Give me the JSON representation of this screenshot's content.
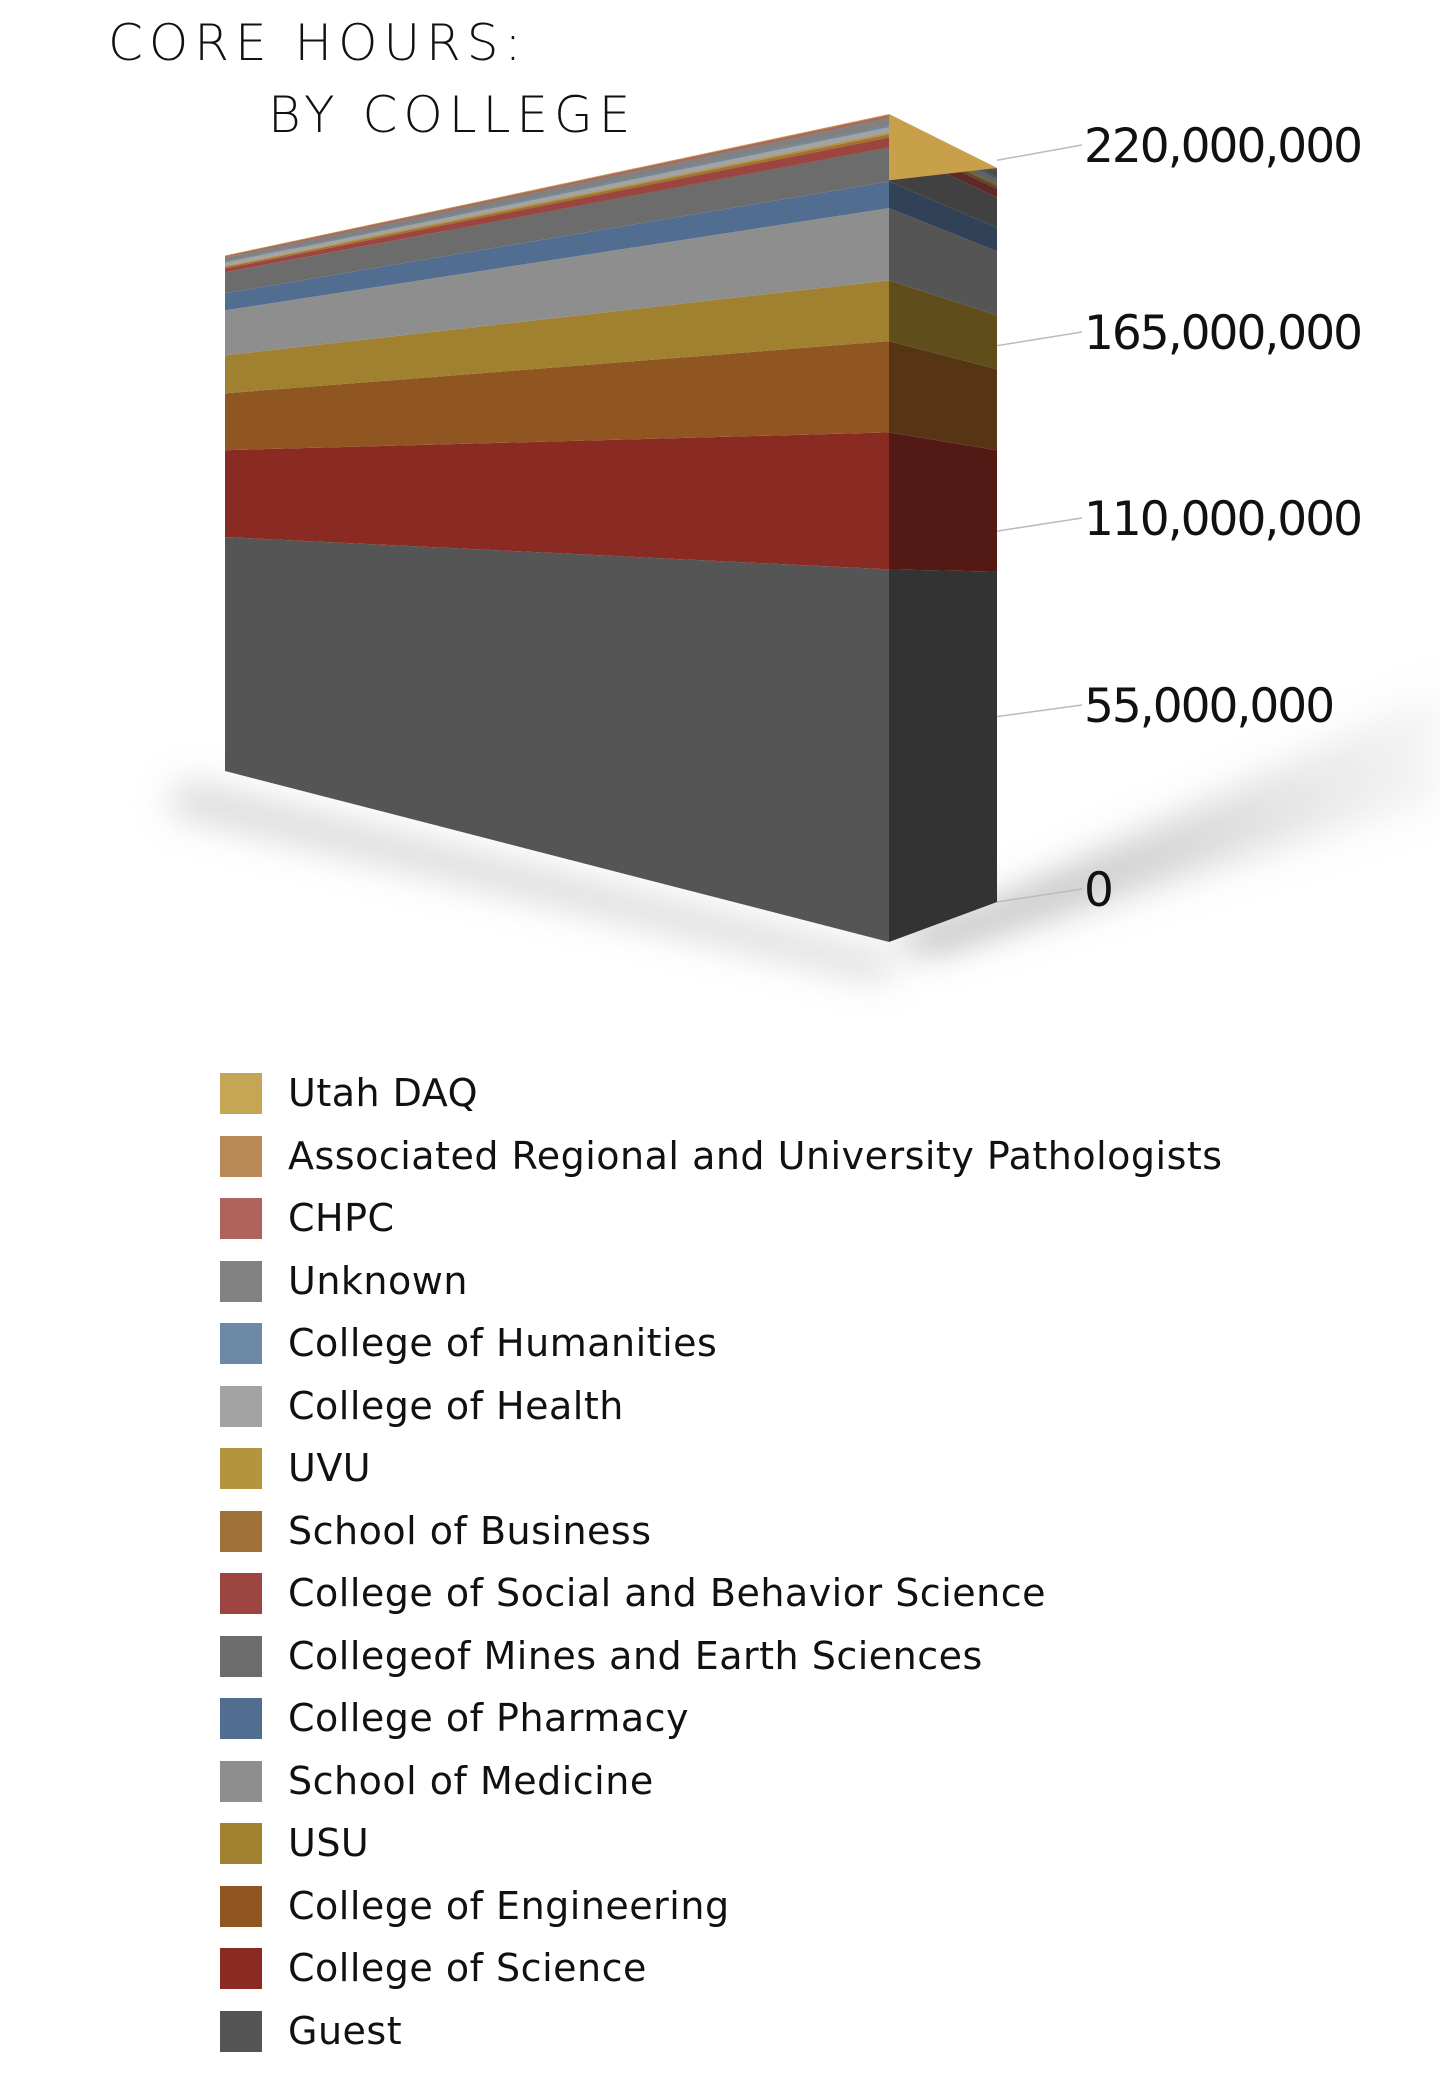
{
  "chart_data": {
    "type": "area",
    "stacked": true,
    "three_d": true,
    "title": "CORE HOURS:",
    "subtitle": "BY COLLEGE",
    "xlabel": "",
    "ylabel": "",
    "ylim": [
      0,
      220000000
    ],
    "yticks": [
      "0",
      "55,000,000",
      "110,000,000",
      "165,000,000",
      "220,000,000"
    ],
    "grid": false,
    "legend_position": "bottom",
    "series": [
      {
        "name": "Utah DAQ",
        "color": "#c4a655",
        "values": [
          100000,
          100000
        ]
      },
      {
        "name": "Associated Regional and University Pathologists",
        "color": "#b98a58",
        "values": [
          200000,
          200000
        ]
      },
      {
        "name": "CHPC",
        "color": "#b0625c",
        "values": [
          500000,
          600000
        ]
      },
      {
        "name": "Unknown",
        "color": "#818181",
        "values": [
          1600000,
          2000000
        ]
      },
      {
        "name": "College of Humanities",
        "color": "#6e89a6",
        "values": [
          400000,
          500000
        ]
      },
      {
        "name": "College of Health",
        "color": "#a3a3a3",
        "values": [
          1200000,
          1500000
        ]
      },
      {
        "name": "UVU",
        "color": "#b39540",
        "values": [
          400000,
          500000
        ]
      },
      {
        "name": "School of Business",
        "color": "#a1713a",
        "values": [
          600000,
          800000
        ]
      },
      {
        "name": "College of Social and Behavior Science",
        "color": "#9c4540",
        "values": [
          1500000,
          2500000
        ]
      },
      {
        "name": "Collegeof Mines and Earth Sciences",
        "color": "#6c6c6c",
        "values": [
          8100000,
          9000000
        ]
      },
      {
        "name": "College of Pharmacy",
        "color": "#516d8f",
        "values": [
          6600000,
          7000000
        ]
      },
      {
        "name": "School of Medicine",
        "color": "#8e8e8e",
        "values": [
          17400000,
          19000000
        ]
      },
      {
        "name": "USU",
        "color": "#a0812f",
        "values": [
          14700000,
          16000000
        ]
      },
      {
        "name": "College of Engineering",
        "color": "#8f5622",
        "values": [
          22000000,
          24000000
        ]
      },
      {
        "name": "College of Science",
        "color": "#8a2b23",
        "values": [
          33600000,
          36000000
        ]
      },
      {
        "name": "Guest",
        "color": "#555555",
        "values": [
          90500000,
          98000000
        ]
      }
    ]
  }
}
